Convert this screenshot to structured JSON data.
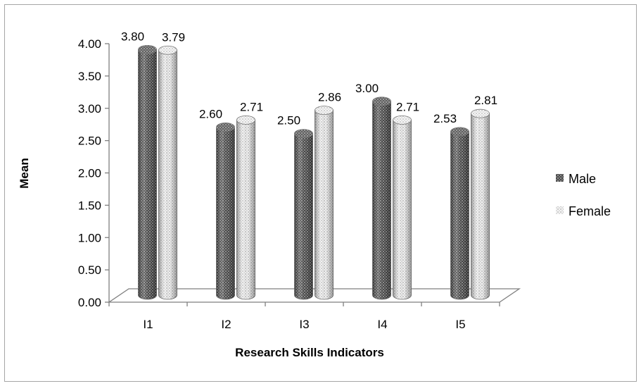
{
  "chart_data": {
    "type": "bar",
    "categories": [
      "I1",
      "I2",
      "I3",
      "I4",
      "I5"
    ],
    "series": [
      {
        "name": "Male",
        "values": [
          3.8,
          2.6,
          2.5,
          3.0,
          2.53
        ],
        "labels": [
          "3.80",
          "2.60",
          "2.50",
          "3.00",
          "2.53"
        ],
        "color": "#5a5a5a",
        "pattern": "dark-dotted"
      },
      {
        "name": "Female",
        "values": [
          3.79,
          2.71,
          2.86,
          2.71,
          2.81
        ],
        "labels": [
          "3.79",
          "2.71",
          "2.86",
          "2.71",
          "2.81"
        ],
        "color": "#cfcfcf",
        "pattern": "light-dotted"
      }
    ],
    "title": "",
    "xlabel": "Research Skills Indicators",
    "ylabel": "Mean",
    "ylim": [
      0,
      4
    ],
    "yticks": [
      "0.00",
      "0.50",
      "1.00",
      "1.50",
      "2.00",
      "2.50",
      "3.00",
      "3.50",
      "4.00"
    ],
    "grid": false,
    "legend": "right",
    "style": "3d-cylinder"
  }
}
